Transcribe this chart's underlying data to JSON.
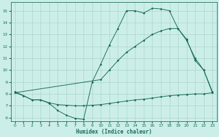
{
  "xlabel": "Humidex (Indice chaleur)",
  "background_color": "#cceee8",
  "grid_color": "#aad4ce",
  "line_color": "#1a6b5a",
  "xlim": [
    -0.5,
    23.5
  ],
  "ylim": [
    5.7,
    15.7
  ],
  "yticks": [
    6,
    7,
    8,
    9,
    10,
    11,
    12,
    13,
    14,
    15
  ],
  "xticks": [
    0,
    1,
    2,
    3,
    4,
    5,
    6,
    7,
    8,
    9,
    10,
    11,
    12,
    13,
    14,
    15,
    16,
    17,
    18,
    19,
    20,
    21,
    22,
    23
  ],
  "line1_x": [
    0,
    1,
    2,
    3,
    4,
    5,
    6,
    7,
    8,
    9,
    10,
    11,
    12,
    13,
    14,
    15,
    16,
    17,
    18,
    19,
    20,
    21,
    22,
    23
  ],
  "line1_y": [
    8.2,
    7.85,
    7.5,
    7.5,
    7.2,
    6.6,
    6.2,
    5.95,
    5.85,
    9.0,
    10.5,
    12.1,
    13.5,
    15.0,
    15.0,
    14.8,
    15.2,
    15.15,
    15.0,
    13.5,
    12.5,
    11.0,
    10.0,
    8.2
  ],
  "line2_x": [
    0,
    1,
    2,
    3,
    4,
    5,
    6,
    7,
    8,
    9,
    10,
    11,
    12,
    13,
    14,
    15,
    16,
    17,
    18,
    19,
    20,
    21,
    22,
    23
  ],
  "line2_y": [
    8.1,
    7.85,
    7.5,
    7.5,
    7.25,
    7.1,
    7.05,
    7.0,
    7.0,
    7.05,
    7.1,
    7.2,
    7.3,
    7.4,
    7.5,
    7.55,
    7.65,
    7.75,
    7.85,
    7.9,
    7.95,
    8.0,
    8.0,
    8.1
  ],
  "line3_x": [
    0,
    10,
    11,
    12,
    13,
    14,
    15,
    16,
    17,
    18,
    19,
    20,
    21,
    22,
    23
  ],
  "line3_y": [
    8.1,
    9.2,
    10.0,
    10.8,
    11.5,
    12.0,
    12.5,
    13.0,
    13.3,
    13.5,
    13.5,
    12.6,
    10.8,
    10.0,
    8.1
  ]
}
